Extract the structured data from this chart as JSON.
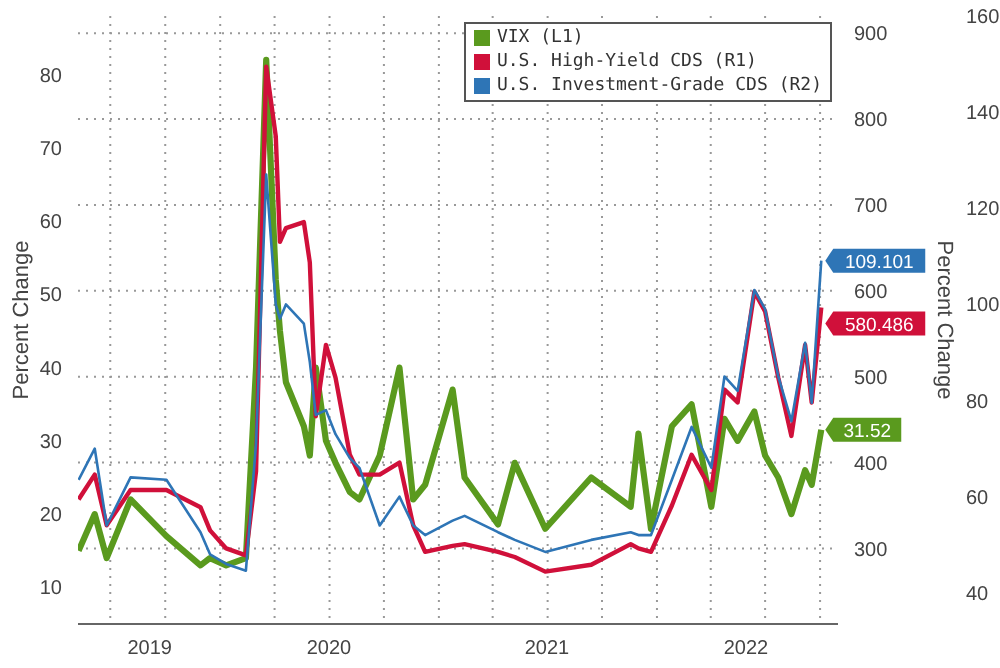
{
  "chart_data": {
    "type": "line",
    "ylabel": "Percent Change",
    "y2label": "Percent Change",
    "x": [
      "2019-05-09",
      "2019-06-05",
      "2019-06-25",
      "2019-08-04",
      "2019-10-03",
      "2019-11-29",
      "2019-12-15",
      "2020-01-11",
      "2020-02-13",
      "2020-03-01",
      "2020-03-18",
      "2020-04-03",
      "2020-04-10",
      "2020-04-20",
      "2020-05-20",
      "2020-05-30",
      "2020-06-09",
      "2020-06-26",
      "2020-07-12",
      "2020-08-05",
      "2020-08-21",
      "2020-09-24",
      "2020-10-27",
      "2020-11-19",
      "2020-12-09",
      "2021-01-24",
      "2021-02-13",
      "2021-04-10",
      "2021-05-08",
      "2021-06-28",
      "2021-09-13",
      "2021-11-18",
      "2021-12-01",
      "2021-12-22",
      "2022-01-26",
      "2022-02-28",
      "2022-04-02",
      "2022-04-24",
      "2022-05-16",
      "2022-06-13",
      "2022-07-01",
      "2022-07-23",
      "2022-08-14",
      "2022-09-06",
      "2022-09-17",
      "2022-10-03"
    ],
    "series": [
      {
        "name": "VIX (L1)",
        "color": "#5a9a1e",
        "axis": "y",
        "values": [
          15,
          20,
          14,
          22,
          17,
          13,
          14,
          13,
          14,
          40,
          82,
          52,
          45,
          38,
          32,
          28,
          40,
          30,
          27,
          23,
          22,
          28,
          40,
          22,
          24,
          37,
          25,
          18.6,
          27,
          18,
          25,
          21,
          31,
          18,
          32,
          35,
          21,
          33,
          30,
          34,
          28,
          25,
          20,
          26,
          24,
          31.52
        ],
        "value_labels": [
          null,
          null,
          null,
          null,
          null,
          null,
          null,
          null,
          null,
          null,
          null,
          null,
          null,
          null,
          null,
          null,
          null,
          null,
          null,
          null,
          null,
          null,
          null,
          null,
          null,
          null,
          null,
          null,
          null,
          null,
          null,
          null,
          null,
          null,
          null,
          null,
          null,
          null,
          null,
          null,
          null,
          null,
          null,
          null,
          null,
          "31.52"
        ]
      },
      {
        "name": "U.S. High-Yield CDS (R1)",
        "color": "#d0103a",
        "axis": "y2",
        "values": [
          357,
          386,
          327,
          368,
          368,
          348,
          321,
          300,
          292,
          390,
          861,
          780,
          657,
          673,
          680,
          633,
          454,
          537,
          499,
          409,
          386,
          386,
          400,
          327,
          296,
          303,
          305,
          296,
          290,
          273,
          281,
          305,
          300,
          296,
          350,
          409,
          368,
          485,
          470,
          599,
          576,
          499,
          431,
          537,
          470,
          580.486
        ],
        "value_labels": [
          null,
          null,
          null,
          null,
          null,
          null,
          null,
          null,
          null,
          null,
          null,
          null,
          null,
          null,
          null,
          null,
          null,
          null,
          null,
          null,
          null,
          null,
          null,
          null,
          null,
          null,
          null,
          null,
          null,
          null,
          null,
          null,
          null,
          null,
          null,
          null,
          null,
          null,
          null,
          null,
          null,
          null,
          null,
          null,
          null,
          "580.486"
        ]
      },
      {
        "name": "U.S. Investment-Grade CDS (R2)",
        "color": "#2e75b6",
        "axis": "y3",
        "values": [
          63.5,
          70,
          54,
          64,
          63.5,
          52.6,
          48,
          46,
          44.6,
          71,
          127,
          100,
          97,
          100,
          96,
          88,
          77,
          78,
          73,
          68,
          66,
          54,
          60,
          54,
          52,
          55,
          56,
          52.6,
          51,
          48.5,
          51,
          52.6,
          52,
          52,
          63.5,
          74.5,
          66,
          85,
          82,
          103,
          99,
          85,
          75.7,
          92,
          79.5,
          109.101
        ],
        "value_labels": [
          null,
          null,
          null,
          null,
          null,
          null,
          null,
          null,
          null,
          null,
          null,
          null,
          null,
          null,
          null,
          null,
          null,
          null,
          null,
          null,
          null,
          null,
          null,
          null,
          null,
          null,
          null,
          null,
          null,
          null,
          null,
          null,
          null,
          null,
          null,
          null,
          null,
          null,
          null,
          null,
          null,
          null,
          null,
          null,
          null,
          "109.101"
        ]
      }
    ],
    "xlim": [
      "2019-05-08",
      "2022-10-31"
    ],
    "xticks": [
      {
        "value": "2019-07-01",
        "label": null
      },
      {
        "value": "2019-09-05",
        "label": "2019"
      },
      {
        "value": "2019-10-01",
        "label": null
      },
      {
        "value": "2020-01-01",
        "label": null
      },
      {
        "value": "2020-04-01",
        "label": null
      },
      {
        "value": "2020-07-01",
        "label": "2020"
      },
      {
        "value": "2020-07-02",
        "label": null
      },
      {
        "value": "2020-10-01",
        "label": null
      },
      {
        "value": "2021-01-01",
        "label": null
      },
      {
        "value": "2021-04-01",
        "label": null
      },
      {
        "value": "2021-07-01",
        "label": "2021"
      },
      {
        "value": "2021-07-02",
        "label": null
      },
      {
        "value": "2021-10-01",
        "label": null
      },
      {
        "value": "2022-01-01",
        "label": null
      },
      {
        "value": "2022-04-01",
        "label": null
      },
      {
        "value": "2022-05-30",
        "label": "2022"
      },
      {
        "value": "2022-07-01",
        "label": null
      },
      {
        "value": "2022-10-01",
        "label": null
      }
    ],
    "ylim": [
      5,
      88
    ],
    "yticks": [
      10,
      20,
      30,
      40,
      50,
      60,
      70,
      80
    ],
    "y2lim": [
      212,
      920
    ],
    "y2ticks": [
      300,
      400,
      500,
      600,
      700,
      800,
      900
    ],
    "y3lim": [
      33.5,
      160
    ],
    "y3ticks": [
      40,
      60,
      80,
      100,
      120,
      140,
      160
    ],
    "grid": true,
    "legend": "top right",
    "marker": "none",
    "line_style": "solid"
  }
}
